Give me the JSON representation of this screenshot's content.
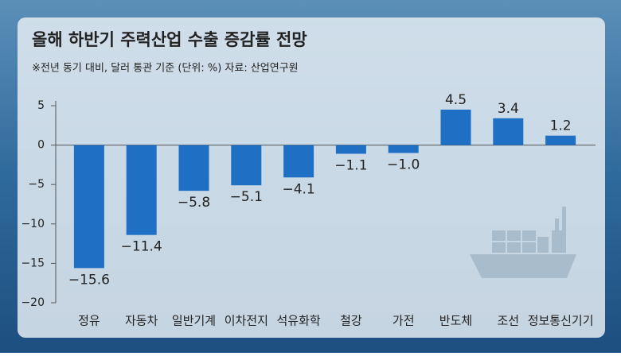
{
  "chart_data": {
    "type": "bar",
    "title": "올해 하반기 주력산업 수출 증감률 전망",
    "subtitle": "※전년 동기 대비, 달러 통관 기준 (단위: %)  자료: 산업연구원",
    "categories": [
      "정유",
      "자동차",
      "일반기계",
      "이차전지",
      "석유화학",
      "철강",
      "가전",
      "반도체",
      "조선",
      "정보통신기기"
    ],
    "values": [
      -15.6,
      -11.4,
      -5.8,
      -5.1,
      -4.1,
      -1.1,
      -1.0,
      4.5,
      3.4,
      1.2
    ],
    "value_labels": [
      "−15.6",
      "−11.4",
      "−5.8",
      "−5.1",
      "−4.1",
      "−1.1",
      "−1.0",
      "4.5",
      "3.4",
      "1.2"
    ],
    "color": "#1f6fc5",
    "ylim": [
      -20,
      5
    ],
    "yticks": [
      5,
      0,
      {
        "value": -5,
        "label": "−5"
      },
      {
        "value": -10,
        "label": "−10"
      },
      {
        "value": -15,
        "label": "−15"
      },
      {
        "value": -20,
        "label": "−20"
      }
    ]
  }
}
